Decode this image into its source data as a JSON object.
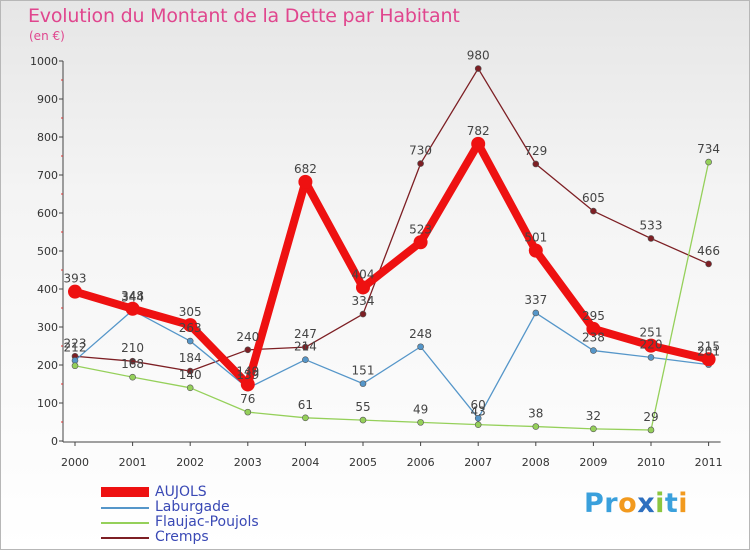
{
  "title": "Evolution du Montant de la Dette par Habitant",
  "unit_label": "(en €)",
  "logo": {
    "text": "Proxiti",
    "letters": [
      "P",
      "r",
      "o",
      "x",
      "i",
      "t",
      "i"
    ],
    "colors": [
      "#3aa0dc",
      "#3aa0dc",
      "#f29a1e",
      "#2d6fbf",
      "#8cc63f",
      "#3aa0dc",
      "#f29a1e"
    ]
  },
  "chart_data": {
    "type": "line",
    "title": "Evolution du Montant de la Dette par Habitant",
    "ylabel": "(en €)",
    "categories": [
      "2000",
      "2001",
      "2002",
      "2003",
      "2004",
      "2005",
      "2006",
      "2007",
      "2008",
      "2009",
      "2010",
      "2011"
    ],
    "ylim": [
      0,
      1000
    ],
    "yticks": [
      0,
      100,
      200,
      300,
      400,
      500,
      600,
      700,
      800,
      900,
      1000
    ],
    "grid": false,
    "legend": "bottom-left",
    "series": [
      {
        "name": "Cremps",
        "color": "#7d1f24",
        "values": [
          223,
          210,
          184,
          240,
          247,
          334,
          730,
          980,
          729,
          605,
          533,
          466
        ],
        "labels": [
          "223",
          "210",
          "184",
          "240",
          "247",
          "334",
          "730",
          "980",
          "729",
          "605",
          "533",
          "466"
        ]
      },
      {
        "name": "Laburgade",
        "color": "#5596c9",
        "values": [
          212,
          344,
          263,
          139,
          214,
          151,
          248,
          60,
          337,
          238,
          220,
          201
        ],
        "labels": [
          "212",
          "344",
          "263",
          "139",
          "214",
          "151",
          "248",
          "60",
          "337",
          "238",
          "220",
          "201"
        ]
      },
      {
        "name": "Flaujac-Poujols",
        "color": "#95d05a",
        "values": [
          198,
          168,
          140,
          76,
          61,
          55,
          49,
          43,
          38,
          32,
          29,
          734
        ],
        "labels": [
          "",
          "168",
          "140",
          "76",
          "61",
          "55",
          "49",
          "43",
          "38",
          "32",
          "29",
          "734"
        ]
      },
      {
        "name": "AUJOLS",
        "color": "#ee1111",
        "values": [
          393,
          348,
          305,
          149,
          682,
          404,
          523,
          782,
          501,
          295,
          251,
          215
        ],
        "labels": [
          "393",
          "348",
          "305",
          "149",
          "682",
          "404",
          "523",
          "782",
          "501",
          "295",
          "251",
          "215"
        ]
      }
    ]
  }
}
